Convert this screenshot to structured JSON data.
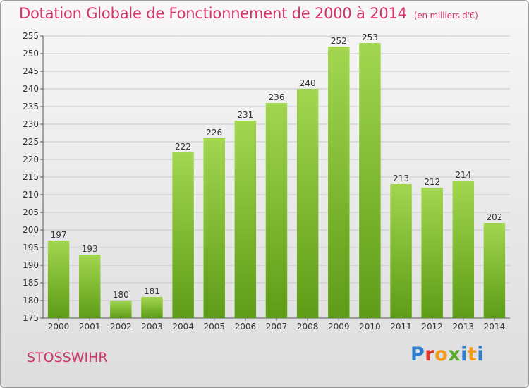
{
  "header": {
    "title": "Dotation Globale de Fonctionnement de 2000 à 2014",
    "unit": "(en milliers d'€)"
  },
  "footer": {
    "commune": "STOSSWIHR",
    "logo": "Proxiti"
  },
  "colors": {
    "title": "#d23567",
    "bar_light": "#a2d64f",
    "bar_dark": "#5e9c17"
  },
  "chart_data": {
    "type": "bar",
    "title": "Dotation Globale de Fonctionnement de 2000 à 2014",
    "subtitle": "(en milliers d'€)",
    "categories": [
      "2000",
      "2001",
      "2002",
      "2003",
      "2004",
      "2005",
      "2006",
      "2007",
      "2008",
      "2009",
      "2010",
      "2011",
      "2012",
      "2013",
      "2014"
    ],
    "values": [
      197,
      193,
      180,
      181,
      222,
      226,
      231,
      236,
      240,
      252,
      253,
      213,
      212,
      214,
      202
    ],
    "ylim": [
      175,
      255
    ],
    "yticks": [
      175,
      180,
      185,
      190,
      195,
      200,
      205,
      210,
      215,
      220,
      225,
      230,
      235,
      240,
      245,
      250,
      255
    ],
    "grid": true,
    "legend": "none"
  }
}
